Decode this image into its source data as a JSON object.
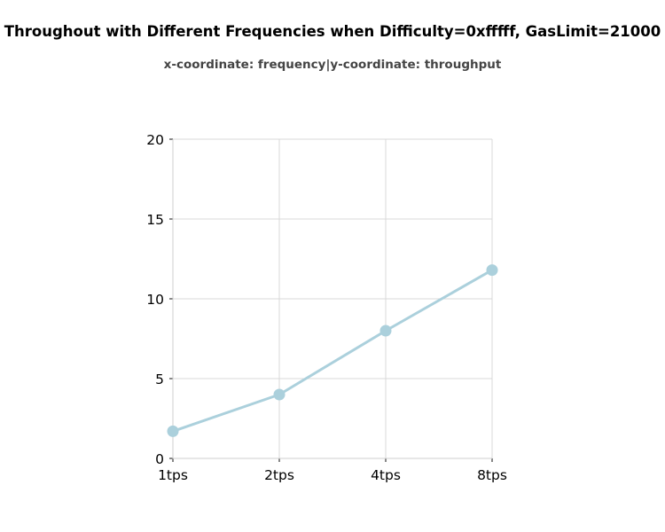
{
  "chart_data": {
    "type": "line",
    "title": "Throughout with Different Frequencies when Difficulty=0xfffff, GasLimit=21000",
    "subtitle": "x-coordinate: frequency|y-coordinate: throughput",
    "xlabel": "",
    "ylabel": "",
    "categories": [
      "1tps",
      "2tps",
      "4tps",
      "8tps"
    ],
    "series": [
      {
        "values": [
          1.7,
          4.0,
          8.0,
          11.8
        ],
        "color": "#abd0dc"
      }
    ],
    "ylim": [
      0,
      20
    ],
    "yticks": [
      "0",
      "5",
      "10",
      "15",
      "20"
    ],
    "grid": true,
    "legend": "none"
  }
}
